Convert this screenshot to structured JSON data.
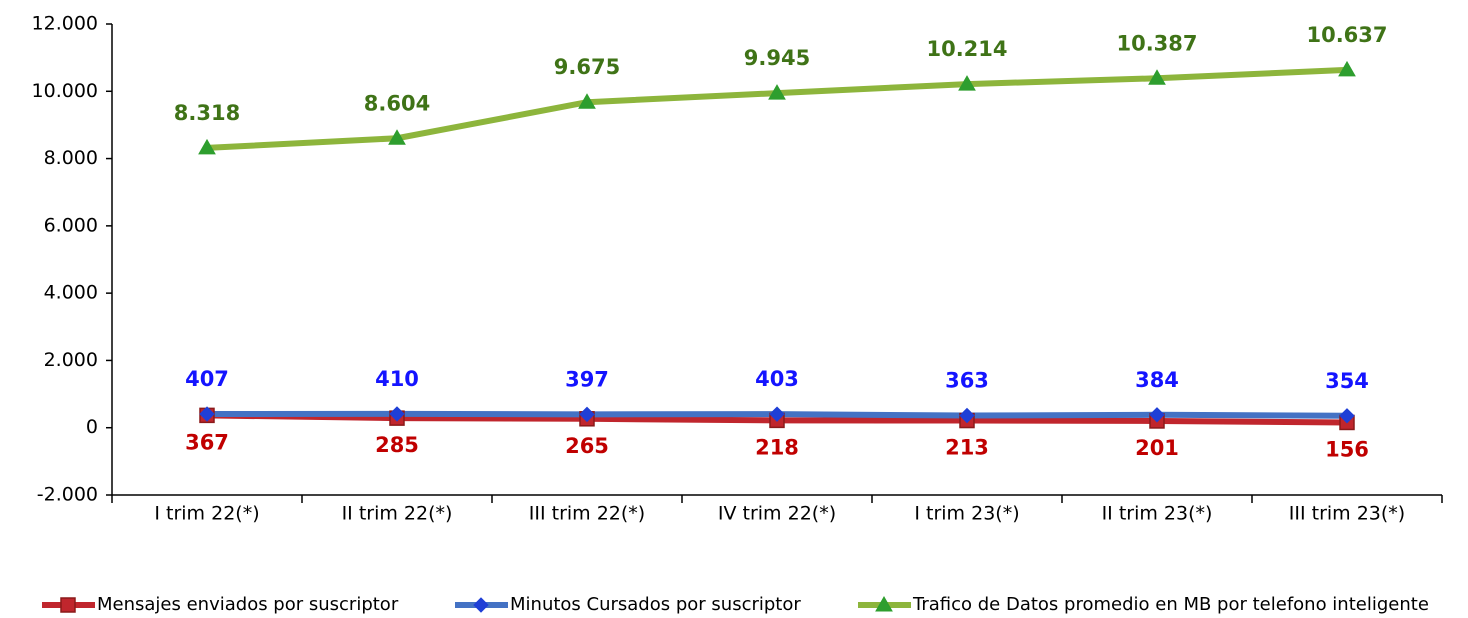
{
  "chart_data": {
    "type": "line",
    "categories": [
      "I trim 22(*)",
      "II trim 22(*)",
      "III trim 22(*)",
      "IV trim 22(*)",
      "I trim 23(*)",
      "II trim 23(*)",
      "III trim 23(*)"
    ],
    "series": [
      {
        "name": "Mensajes enviados por suscriptor",
        "color": "#c0262d",
        "marker": "square",
        "label_color": "#c00000",
        "label_position": "below",
        "values": [
          367,
          285,
          265,
          218,
          213,
          201,
          156
        ]
      },
      {
        "name": "Minutos Cursados por suscriptor",
        "color": "#4472c4",
        "marker_color": "#1f3fd6",
        "marker": "diamond",
        "label_color": "#1414ff",
        "label_position": "above",
        "values": [
          407,
          410,
          397,
          403,
          363,
          384,
          354
        ]
      },
      {
        "name": "Trafico de Datos promedio en MB por telefono inteligente",
        "color": "#8db53c",
        "marker_color": "#2e9e2e",
        "marker": "triangle",
        "label_color": "#3f7317",
        "label_position": "above",
        "values": [
          8318,
          8604,
          9675,
          9945,
          10214,
          10387,
          10637
        ],
        "value_labels": [
          "8.318",
          "8.604",
          "9.675",
          "9.945",
          "10.214",
          "10.387",
          "10.637"
        ]
      }
    ],
    "ylim": [
      -2000,
      12000
    ],
    "yticks": [
      {
        "value": -2000,
        "label": "-2.000"
      },
      0,
      {
        "value": 2000,
        "label": "2.000"
      },
      {
        "value": 4000,
        "label": "4.000"
      },
      {
        "value": 6000,
        "label": "6.000"
      },
      {
        "value": 8000,
        "label": "8.000"
      },
      {
        "value": 10000,
        "label": "10.000"
      },
      {
        "value": 12000,
        "label": "12.000"
      }
    ],
    "grid": false,
    "legend": "bottom"
  }
}
